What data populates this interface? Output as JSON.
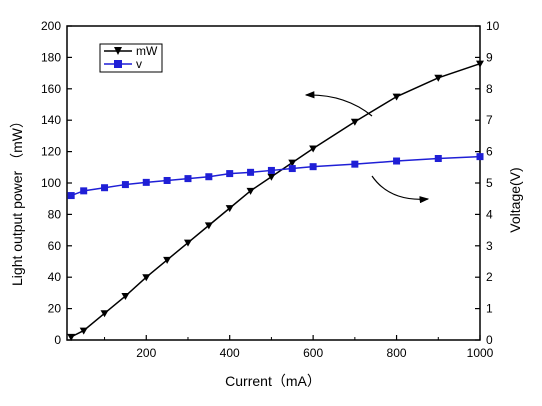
{
  "chart_data": {
    "type": "line",
    "xlabel": "Current（mA）",
    "ylabel_left": "Light output power （mW）",
    "ylabel_right": "Voltage(V)",
    "xlim": [
      10,
      1000
    ],
    "ylim_left": [
      0,
      200
    ],
    "ylim_right": [
      0,
      10
    ],
    "x_ticks": [
      200,
      400,
      600,
      800,
      1000
    ],
    "y_left_ticks": [
      0,
      20,
      40,
      60,
      80,
      100,
      120,
      140,
      160,
      180,
      200
    ],
    "y_right_ticks": [
      0,
      1,
      2,
      3,
      4,
      5,
      6,
      7,
      8,
      9,
      10
    ],
    "x_tick_labels": [
      "200",
      "400",
      "600",
      "800",
      "1000"
    ],
    "y_left_tick_labels": [
      "0",
      "20",
      "40",
      "60",
      "80",
      "100",
      "120",
      "140",
      "160",
      "180",
      "200"
    ],
    "y_right_tick_labels": [
      "0",
      "1",
      "2",
      "3",
      "4",
      "5",
      "6",
      "7",
      "8",
      "9",
      "10"
    ],
    "legend_position": "top-left",
    "grid": false,
    "series": [
      {
        "name": "mW",
        "axis": "left",
        "marker": "triangle-down",
        "color": "#000000",
        "x": [
          20,
          50,
          100,
          150,
          200,
          250,
          300,
          350,
          400,
          450,
          500,
          550,
          600,
          700,
          800,
          900,
          1000
        ],
        "y": [
          2,
          6,
          17,
          28,
          40,
          51,
          62,
          73,
          84,
          95,
          104,
          113,
          122,
          139,
          155,
          167,
          176
        ]
      },
      {
        "name": "v",
        "axis": "right",
        "marker": "square",
        "color": "#1f1fd6",
        "x": [
          20,
          50,
          100,
          150,
          200,
          250,
          300,
          350,
          400,
          450,
          500,
          550,
          600,
          700,
          800,
          900,
          1000
        ],
        "y": [
          4.6,
          4.75,
          4.85,
          4.95,
          5.02,
          5.08,
          5.14,
          5.2,
          5.3,
          5.34,
          5.4,
          5.46,
          5.52,
          5.6,
          5.7,
          5.78,
          5.84
        ]
      }
    ]
  }
}
